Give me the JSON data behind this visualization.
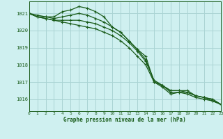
{
  "title": "Graphe pression niveau de la mer (hPa)",
  "bg_color": "#cff0f0",
  "grid_color": "#aad4d4",
  "line_color": "#1a5c1a",
  "xlim": [
    0,
    23
  ],
  "ylim": [
    1015.3,
    1021.7
  ],
  "yticks": [
    1016,
    1017,
    1018,
    1019,
    1020,
    1021
  ],
  "xticks": [
    0,
    1,
    2,
    3,
    4,
    5,
    6,
    7,
    8,
    9,
    10,
    11,
    12,
    13,
    14,
    15,
    16,
    17,
    18,
    19,
    20,
    21,
    22,
    23
  ],
  "series": [
    [
      1021.0,
      1020.9,
      1020.8,
      1020.8,
      1021.1,
      1021.2,
      1021.4,
      1021.3,
      1021.1,
      1020.8,
      1020.2,
      1019.9,
      1019.4,
      1018.9,
      1018.5,
      1017.0,
      1016.8,
      1016.5,
      1016.5,
      1016.5,
      1016.2,
      1016.1,
      1016.0,
      1015.7
    ],
    [
      1021.0,
      1020.8,
      1020.8,
      1020.7,
      1020.8,
      1020.9,
      1021.0,
      1020.9,
      1020.7,
      1020.5,
      1020.2,
      1019.9,
      1019.4,
      1018.9,
      1018.3,
      1017.1,
      1016.8,
      1016.5,
      1016.5,
      1016.4,
      1016.2,
      1016.1,
      1016.0,
      1015.7
    ],
    [
      1021.0,
      1020.8,
      1020.7,
      1020.6,
      1020.6,
      1020.6,
      1020.6,
      1020.5,
      1020.4,
      1020.2,
      1020.0,
      1019.7,
      1019.3,
      1018.8,
      1018.2,
      1017.1,
      1016.8,
      1016.4,
      1016.4,
      1016.4,
      1016.2,
      1016.1,
      1015.9,
      1015.7
    ],
    [
      1021.0,
      1020.8,
      1020.7,
      1020.6,
      1020.5,
      1020.4,
      1020.3,
      1020.2,
      1020.1,
      1019.9,
      1019.7,
      1019.4,
      1019.0,
      1018.5,
      1018.0,
      1017.0,
      1016.7,
      1016.3,
      1016.4,
      1016.3,
      1016.1,
      1016.0,
      1015.9,
      1015.7
    ]
  ]
}
